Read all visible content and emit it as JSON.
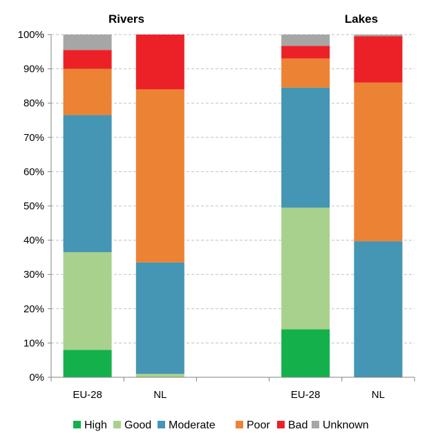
{
  "chart_data": {
    "type": "bar",
    "stacked": true,
    "ytick_labels": [
      "0%",
      "10%",
      "20%",
      "30%",
      "40%",
      "50%",
      "60%",
      "70%",
      "80%",
      "90%",
      "100%"
    ],
    "ylim": [
      0,
      100
    ],
    "grid": "horizontal dashed",
    "legend_position": "bottom",
    "groups": [
      {
        "title": "Rivers",
        "categories": [
          "EU-28",
          "NL"
        ]
      },
      {
        "title": "Lakes",
        "categories": [
          "EU-28",
          "NL"
        ]
      }
    ],
    "categories": [
      "EU-28",
      "NL",
      "EU-28",
      "NL"
    ],
    "series": [
      {
        "name": "High",
        "color": "#14b04b",
        "values": [
          8,
          0,
          14,
          0
        ]
      },
      {
        "name": "Good",
        "color": "#a9d18e",
        "values": [
          28.5,
          1,
          35.5,
          0
        ]
      },
      {
        "name": "Moderate",
        "color": "#4496b4",
        "values": [
          40,
          32.5,
          35,
          39.7
        ]
      },
      {
        "name": "Poor",
        "color": "#ec8234",
        "values": [
          13.5,
          50.5,
          8.5,
          46.3
        ]
      },
      {
        "name": "Bad",
        "color": "#ec2127",
        "values": [
          5.5,
          16,
          3.7,
          13.5
        ]
      },
      {
        "name": "Unknown",
        "color": "#a6a6a6",
        "values": [
          4.5,
          0,
          3.3,
          0.5
        ]
      }
    ]
  }
}
